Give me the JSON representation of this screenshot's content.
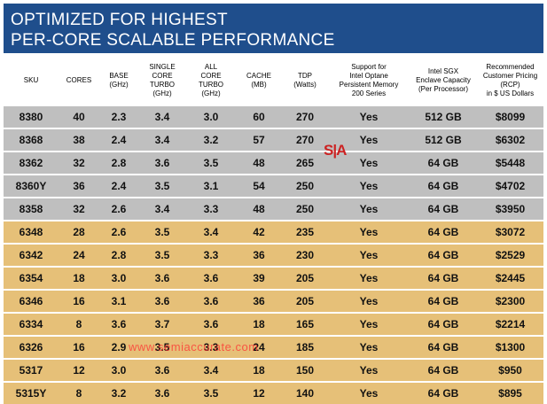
{
  "title": {
    "line1": "OPTIMIZED FOR HIGHEST",
    "line2": "PER-CORE SCALABLE PERFORMANCE"
  },
  "columns": [
    "SKU",
    "CORES",
    "BASE\n(GHz)",
    "SINGLE\nCORE\nTURBO\n(GHz)",
    "ALL\nCORE\nTURBO\n(GHz)",
    "CACHE\n(MB)",
    "TDP\n(Watts)",
    "Support for\nIntel Optane\nPersistent Memory\n200 Series",
    "Intel SGX\nEnclave Capacity\n(Per Processor)",
    "Recommended\nCustomer Pricing\n(RCP)\nin $ US Dollars"
  ],
  "colors": {
    "title_bg": "#1f4e8c",
    "gray_row": "#bfbfbf",
    "gold_row": "#e6c078",
    "logo_red": "#cc2222"
  },
  "rows": [
    {
      "group": "gray",
      "cells": [
        "8380",
        "40",
        "2.3",
        "3.4",
        "3.0",
        "60",
        "270",
        "Yes",
        "512 GB",
        "$8099"
      ]
    },
    {
      "group": "gray",
      "cells": [
        "8368",
        "38",
        "2.4",
        "3.4",
        "3.2",
        "57",
        "270",
        "Yes",
        "512 GB",
        "$6302"
      ]
    },
    {
      "group": "gray",
      "cells": [
        "8362",
        "32",
        "2.8",
        "3.6",
        "3.5",
        "48",
        "265",
        "Yes",
        "64 GB",
        "$5448"
      ]
    },
    {
      "group": "gray",
      "cells": [
        "8360Y",
        "36",
        "2.4",
        "3.5",
        "3.1",
        "54",
        "250",
        "Yes",
        "64 GB",
        "$4702"
      ]
    },
    {
      "group": "gray",
      "cells": [
        "8358",
        "32",
        "2.6",
        "3.4",
        "3.3",
        "48",
        "250",
        "Yes",
        "64 GB",
        "$3950"
      ]
    },
    {
      "group": "gold",
      "cells": [
        "6348",
        "28",
        "2.6",
        "3.5",
        "3.4",
        "42",
        "235",
        "Yes",
        "64 GB",
        "$3072"
      ]
    },
    {
      "group": "gold",
      "cells": [
        "6342",
        "24",
        "2.8",
        "3.5",
        "3.3",
        "36",
        "230",
        "Yes",
        "64 GB",
        "$2529"
      ]
    },
    {
      "group": "gold",
      "cells": [
        "6354",
        "18",
        "3.0",
        "3.6",
        "3.6",
        "39",
        "205",
        "Yes",
        "64 GB",
        "$2445"
      ]
    },
    {
      "group": "gold",
      "cells": [
        "6346",
        "16",
        "3.1",
        "3.6",
        "3.6",
        "36",
        "205",
        "Yes",
        "64 GB",
        "$2300"
      ]
    },
    {
      "group": "gold",
      "cells": [
        "6334",
        "8",
        "3.6",
        "3.7",
        "3.6",
        "18",
        "165",
        "Yes",
        "64 GB",
        "$2214"
      ]
    },
    {
      "group": "gold",
      "cells": [
        "6326",
        "16",
        "2.9",
        "3.5",
        "3.3",
        "24",
        "185",
        "Yes",
        "64 GB",
        "$1300"
      ]
    },
    {
      "group": "gold",
      "cells": [
        "5317",
        "12",
        "3.0",
        "3.6",
        "3.4",
        "18",
        "150",
        "Yes",
        "64 GB",
        "$950"
      ]
    },
    {
      "group": "gold",
      "cells": [
        "5315Y",
        "8",
        "3.2",
        "3.6",
        "3.5",
        "12",
        "140",
        "Yes",
        "64 GB",
        "$895"
      ]
    }
  ],
  "logo_text": "S|A",
  "watermark": "www.semiaccurate.com"
}
